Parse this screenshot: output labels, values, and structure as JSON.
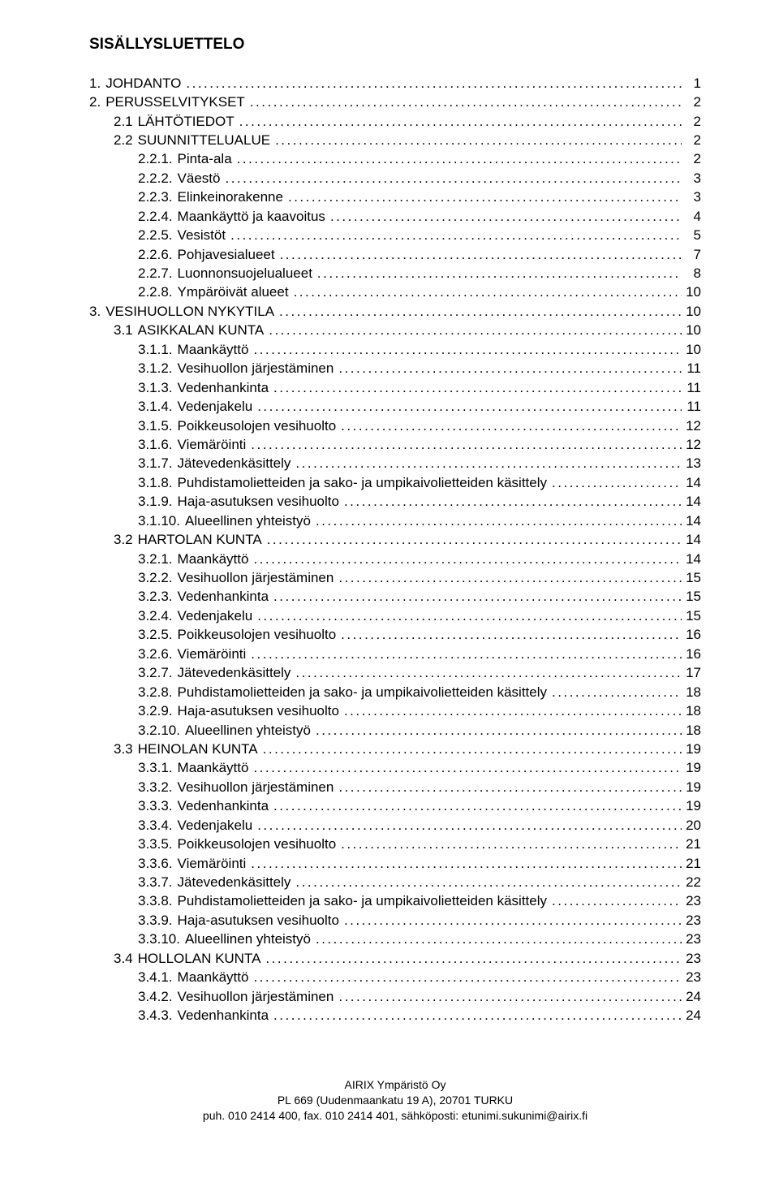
{
  "title": "SISÄLLYSLUETTELO",
  "footer": {
    "line1": "AIRIX Ympäristö Oy",
    "line2": "PL 669 (Uudenmaankatu 19 A), 20701 TURKU",
    "line3": "puh. 010 2414 400, fax. 010 2414 401, sähköposti: etunimi.sukunimi@airix.fi"
  },
  "toc": [
    {
      "num": "1.",
      "label": "JOHDANTO",
      "page": "1",
      "indent": 0
    },
    {
      "num": "2.",
      "label": "PERUSSELVITYKSET",
      "page": "2",
      "indent": 0
    },
    {
      "num": "2.1",
      "label": "LÄHTÖTIEDOT",
      "page": "2",
      "indent": 1
    },
    {
      "num": "2.2",
      "label": "SUUNNITTELUALUE",
      "page": "2",
      "indent": 1
    },
    {
      "num": "2.2.1.",
      "label": "Pinta-ala",
      "page": "2",
      "indent": 2
    },
    {
      "num": "2.2.2.",
      "label": "Väestö",
      "page": "3",
      "indent": 2
    },
    {
      "num": "2.2.3.",
      "label": "Elinkeinorakenne",
      "page": "3",
      "indent": 2
    },
    {
      "num": "2.2.4.",
      "label": "Maankäyttö ja kaavoitus",
      "page": "4",
      "indent": 2
    },
    {
      "num": "2.2.5.",
      "label": "Vesistöt",
      "page": "5",
      "indent": 2
    },
    {
      "num": "2.2.6.",
      "label": "Pohjavesialueet",
      "page": "7",
      "indent": 2
    },
    {
      "num": "2.2.7.",
      "label": "Luonnonsuojelualueet",
      "page": "8",
      "indent": 2
    },
    {
      "num": "2.2.8.",
      "label": "Ympäröivät alueet",
      "page": "10",
      "indent": 2
    },
    {
      "num": "3.",
      "label": "VESIHUOLLON NYKYTILA",
      "page": "10",
      "indent": 0
    },
    {
      "num": "3.1",
      "label": "ASIKKALAN KUNTA",
      "page": "10",
      "indent": 1
    },
    {
      "num": "3.1.1.",
      "label": "Maankäyttö",
      "page": "10",
      "indent": 2
    },
    {
      "num": "3.1.2.",
      "label": "Vesihuollon järjestäminen",
      "page": "11",
      "indent": 2
    },
    {
      "num": "3.1.3.",
      "label": "Vedenhankinta",
      "page": "11",
      "indent": 2
    },
    {
      "num": "3.1.4.",
      "label": "Vedenjakelu",
      "page": "11",
      "indent": 2
    },
    {
      "num": "3.1.5.",
      "label": "Poikkeusolojen vesihuolto",
      "page": "12",
      "indent": 2
    },
    {
      "num": "3.1.6.",
      "label": "Viemäröinti",
      "page": "12",
      "indent": 2
    },
    {
      "num": "3.1.7.",
      "label": "Jätevedenkäsittely",
      "page": "13",
      "indent": 2
    },
    {
      "num": "3.1.8.",
      "label": "Puhdistamolietteiden ja sako- ja umpikaivolietteiden käsittely",
      "page": "14",
      "indent": 2
    },
    {
      "num": "3.1.9.",
      "label": "Haja-asutuksen vesihuolto",
      "page": "14",
      "indent": 2
    },
    {
      "num": "3.1.10.",
      "label": "Alueellinen yhteistyö",
      "page": "14",
      "indent": 2
    },
    {
      "num": "3.2",
      "label": "HARTOLAN KUNTA",
      "page": "14",
      "indent": 1
    },
    {
      "num": "3.2.1.",
      "label": "Maankäyttö",
      "page": "14",
      "indent": 2
    },
    {
      "num": "3.2.2.",
      "label": "Vesihuollon järjestäminen",
      "page": "15",
      "indent": 2
    },
    {
      "num": "3.2.3.",
      "label": "Vedenhankinta",
      "page": "15",
      "indent": 2
    },
    {
      "num": "3.2.4.",
      "label": "Vedenjakelu",
      "page": "15",
      "indent": 2
    },
    {
      "num": "3.2.5.",
      "label": "Poikkeusolojen vesihuolto",
      "page": "16",
      "indent": 2
    },
    {
      "num": "3.2.6.",
      "label": "Viemäröinti",
      "page": "16",
      "indent": 2
    },
    {
      "num": "3.2.7.",
      "label": "Jätevedenkäsittely",
      "page": "17",
      "indent": 2
    },
    {
      "num": "3.2.8.",
      "label": "Puhdistamolietteiden ja sako- ja umpikaivolietteiden käsittely",
      "page": "18",
      "indent": 2
    },
    {
      "num": "3.2.9.",
      "label": "Haja-asutuksen vesihuolto",
      "page": "18",
      "indent": 2
    },
    {
      "num": "3.2.10.",
      "label": "Alueellinen yhteistyö",
      "page": "18",
      "indent": 2
    },
    {
      "num": "3.3",
      "label": "HEINOLAN KUNTA",
      "page": "19",
      "indent": 1
    },
    {
      "num": "3.3.1.",
      "label": "Maankäyttö",
      "page": "19",
      "indent": 2
    },
    {
      "num": "3.3.2.",
      "label": "Vesihuollon järjestäminen",
      "page": "19",
      "indent": 2
    },
    {
      "num": "3.3.3.",
      "label": "Vedenhankinta",
      "page": "19",
      "indent": 2
    },
    {
      "num": "3.3.4.",
      "label": "Vedenjakelu",
      "page": "20",
      "indent": 2
    },
    {
      "num": "3.3.5.",
      "label": "Poikkeusolojen vesihuolto",
      "page": "21",
      "indent": 2
    },
    {
      "num": "3.3.6.",
      "label": "Viemäröinti",
      "page": "21",
      "indent": 2
    },
    {
      "num": "3.3.7.",
      "label": "Jätevedenkäsittely",
      "page": "22",
      "indent": 2
    },
    {
      "num": "3.3.8.",
      "label": "Puhdistamolietteiden ja sako- ja umpikaivolietteiden käsittely",
      "page": "23",
      "indent": 2
    },
    {
      "num": "3.3.9.",
      "label": "Haja-asutuksen vesihuolto",
      "page": "23",
      "indent": 2
    },
    {
      "num": "3.3.10.",
      "label": "Alueellinen yhteistyö",
      "page": "23",
      "indent": 2
    },
    {
      "num": "3.4",
      "label": "HOLLOLAN KUNTA",
      "page": "23",
      "indent": 1
    },
    {
      "num": "3.4.1.",
      "label": "Maankäyttö",
      "page": "23",
      "indent": 2
    },
    {
      "num": "3.4.2.",
      "label": "Vesihuollon järjestäminen",
      "page": "24",
      "indent": 2
    },
    {
      "num": "3.4.3.",
      "label": "Vedenhankinta",
      "page": "24",
      "indent": 2
    }
  ]
}
